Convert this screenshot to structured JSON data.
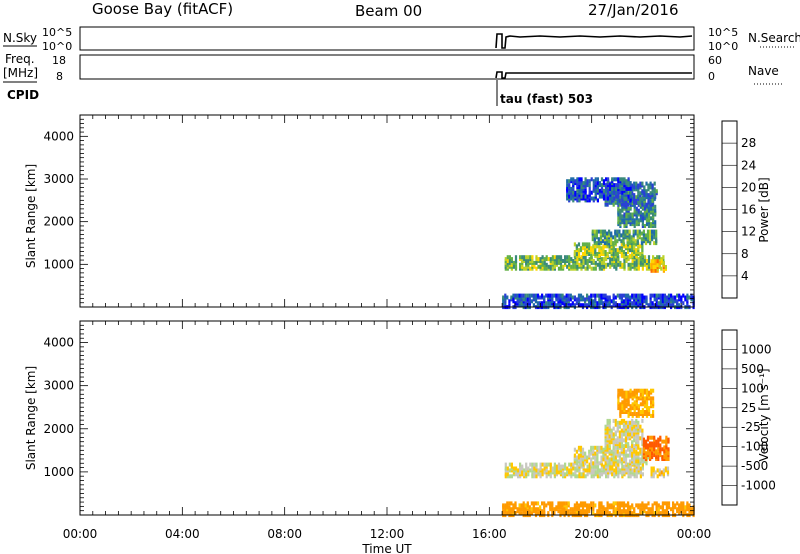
{
  "header": {
    "station": "Goose Bay (fitACF)",
    "beam": "Beam 00",
    "date": "27/Jan/2016"
  },
  "status_panels": {
    "nsky_label": "N.Sky",
    "nsky_ticks": [
      "10^5",
      "10^0"
    ],
    "nsearch_label": "N.Search",
    "nsearch_ticks": [
      "10^5",
      "10^0"
    ],
    "freq_label_1": "Freq.",
    "freq_label_2": "[MHz]",
    "freq_ticks": [
      "18",
      "8"
    ],
    "nave_label": "Nave",
    "nave_ticks": [
      "60",
      "0"
    ],
    "cpid_label": "CPID",
    "cpid_value": "tau (fast) 503"
  },
  "chart_data": [
    {
      "type": "heatmap",
      "panel": "power",
      "ylabel": "Slant Range [km]",
      "ytick_labels": [
        "1000",
        "2000",
        "3000",
        "4000"
      ],
      "ylim": [
        0,
        4500
      ],
      "xlim_hours": [
        0,
        24
      ],
      "colorbar": {
        "label": "Power [dB]",
        "tick_labels": [
          "28",
          "24",
          "20",
          "16",
          "12",
          "8",
          "4"
        ],
        "colors": [
          "#ff0000",
          "#ff6a00",
          "#ffaa00",
          "#ffd700",
          "#bcd22a",
          "#62b048",
          "#3a8a7a",
          "#1f6ba8",
          "#2a3fd6",
          "#0000ff"
        ]
      },
      "regions": [
        {
          "t": [
            16.6,
            22.8
          ],
          "r": [
            900,
            1200
          ],
          "v": 14
        },
        {
          "t": [
            19.3,
            22.0
          ],
          "r": [
            1200,
            1500
          ],
          "v": 16
        },
        {
          "t": [
            20.0,
            22.5
          ],
          "r": [
            1500,
            1800
          ],
          "v": 12
        },
        {
          "t": [
            21.0,
            22.5
          ],
          "r": [
            1900,
            2600
          ],
          "v": 10
        },
        {
          "t": [
            20.5,
            22.5
          ],
          "r": [
            2400,
            2900
          ],
          "v": 8
        },
        {
          "t": [
            19.0,
            21.5
          ],
          "r": [
            2500,
            3000
          ],
          "v": 6
        },
        {
          "t": [
            22.3,
            22.9
          ],
          "r": [
            850,
            1100
          ],
          "v": 22
        },
        {
          "t": [
            16.5,
            24.0
          ],
          "r": [
            0,
            300
          ],
          "v": 5
        }
      ]
    },
    {
      "type": "heatmap",
      "panel": "velocity",
      "ylabel": "Slant Range [km]",
      "xlabel": "Time UT",
      "ytick_labels": [
        "1000",
        "2000",
        "3000",
        "4000"
      ],
      "xtick_labels": [
        "00:00",
        "04:00",
        "08:00",
        "12:00",
        "16:00",
        "20:00",
        "00:00"
      ],
      "ylim": [
        0,
        4500
      ],
      "xlim_hours": [
        0,
        24
      ],
      "colorbar": {
        "label": "Velocity [m s⁻¹]",
        "tick_labels": [
          "1000",
          "500",
          "100",
          "25",
          "-25",
          "-100",
          "-500",
          "-1000"
        ],
        "colors": [
          "#1e3fc8",
          "#2a6ab0",
          "#3a9a5a",
          "#60c040",
          "#b0d890",
          "#c8c8c0",
          "#ffc800",
          "#ff9a00",
          "#ff5a00",
          "#ff0000"
        ]
      },
      "regions": [
        {
          "t": [
            16.6,
            22.0
          ],
          "r": [
            900,
            1200
          ],
          "v": 0
        },
        {
          "t": [
            19.3,
            22.3
          ],
          "r": [
            1200,
            1600
          ],
          "v": 0
        },
        {
          "t": [
            20.5,
            22.0
          ],
          "r": [
            1600,
            2200
          ],
          "v": 0
        },
        {
          "t": [
            21.0,
            22.4
          ],
          "r": [
            2300,
            2900
          ],
          "v": -120
        },
        {
          "t": [
            22.0,
            23.0
          ],
          "r": [
            1300,
            1800
          ],
          "v": -250
        },
        {
          "t": [
            22.3,
            23.0
          ],
          "r": [
            900,
            1100
          ],
          "v": -60
        },
        {
          "t": [
            16.5,
            24.0
          ],
          "r": [
            0,
            300
          ],
          "v": -150
        }
      ]
    }
  ]
}
